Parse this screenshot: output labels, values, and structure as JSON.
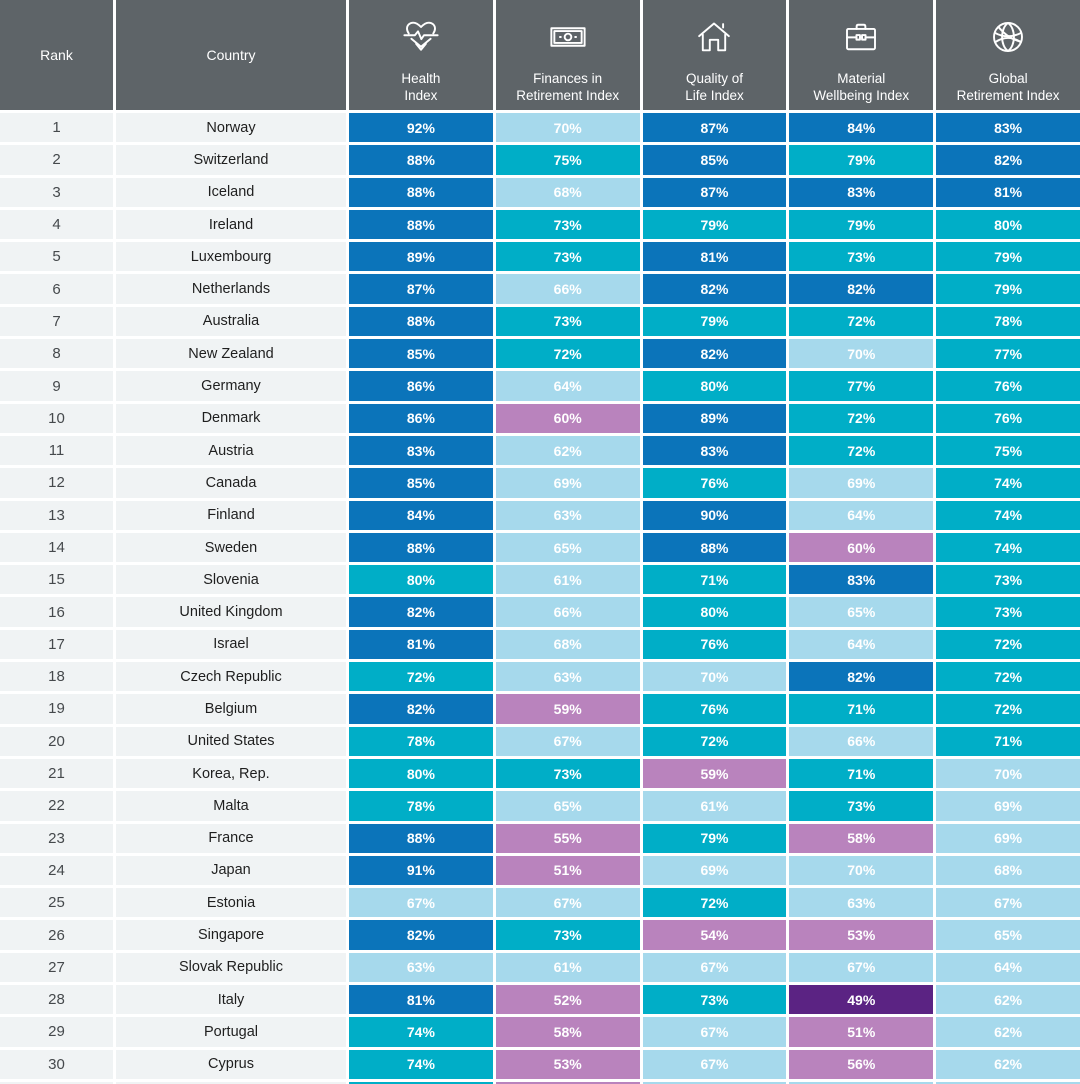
{
  "title": "Global Retirement Index country ranking table",
  "colors": {
    "header_bg": "#5e6468",
    "row_bg": "#f0f3f4",
    "dark_blue": "#0b74ba",
    "teal": "#00aec7",
    "light_blue": "#a6d9ec",
    "purple": "#b983bd",
    "dark_purple": "#5b2383",
    "value_text": "#ffffff",
    "rank_text": "#45494c",
    "country_text": "#1f1f1f"
  },
  "header": {
    "rank_label": "Rank",
    "country_label": "Country",
    "columns": [
      {
        "line1": "Health",
        "line2": "Index",
        "icon": "heartbeat-icon"
      },
      {
        "line1": "Finances in",
        "line2": "Retirement Index",
        "icon": "banknote-icon"
      },
      {
        "line1": "Quality of",
        "line2": "Life Index",
        "icon": "house-icon"
      },
      {
        "line1": "Material",
        "line2": "Wellbeing Index",
        "icon": "briefcase-icon"
      },
      {
        "line1": "Global",
        "line2": "Retirement Index",
        "icon": "globe-icon"
      }
    ]
  },
  "chart_data": {
    "type": "heatmap",
    "unit": "%",
    "columns": [
      "Health Index",
      "Finances in Retirement Index",
      "Quality of Life Index",
      "Material Wellbeing Index",
      "Global Retirement Index"
    ],
    "color_scale": [
      {
        "min": 81,
        "color_key": "dark_blue"
      },
      {
        "min": 71,
        "color_key": "teal"
      },
      {
        "min": 61,
        "color_key": "light_blue"
      },
      {
        "min": 51,
        "color_key": "purple"
      },
      {
        "min": 0,
        "color_key": "dark_purple"
      }
    ],
    "rows": [
      {
        "rank": 1,
        "country": "Norway",
        "values": [
          92,
          70,
          87,
          84,
          83
        ]
      },
      {
        "rank": 2,
        "country": "Switzerland",
        "values": [
          88,
          75,
          85,
          79,
          82
        ]
      },
      {
        "rank": 3,
        "country": "Iceland",
        "values": [
          88,
          68,
          87,
          83,
          81
        ]
      },
      {
        "rank": 4,
        "country": "Ireland",
        "values": [
          88,
          73,
          79,
          79,
          80
        ]
      },
      {
        "rank": 5,
        "country": "Luxembourg",
        "values": [
          89,
          73,
          81,
          73,
          79
        ]
      },
      {
        "rank": 6,
        "country": "Netherlands",
        "values": [
          87,
          66,
          82,
          82,
          79
        ]
      },
      {
        "rank": 7,
        "country": "Australia",
        "values": [
          88,
          73,
          79,
          72,
          78
        ]
      },
      {
        "rank": 8,
        "country": "New Zealand",
        "values": [
          85,
          72,
          82,
          70,
          77
        ]
      },
      {
        "rank": 9,
        "country": "Germany",
        "values": [
          86,
          64,
          80,
          77,
          76
        ]
      },
      {
        "rank": 10,
        "country": "Denmark",
        "values": [
          86,
          60,
          89,
          72,
          76
        ]
      },
      {
        "rank": 11,
        "country": "Austria",
        "values": [
          83,
          62,
          83,
          72,
          75
        ]
      },
      {
        "rank": 12,
        "country": "Canada",
        "values": [
          85,
          69,
          76,
          69,
          74
        ]
      },
      {
        "rank": 13,
        "country": "Finland",
        "values": [
          84,
          63,
          90,
          64,
          74
        ]
      },
      {
        "rank": 14,
        "country": "Sweden",
        "values": [
          88,
          65,
          88,
          60,
          74
        ]
      },
      {
        "rank": 15,
        "country": "Slovenia",
        "values": [
          80,
          61,
          71,
          83,
          73
        ]
      },
      {
        "rank": 16,
        "country": "United Kingdom",
        "values": [
          82,
          66,
          80,
          65,
          73
        ]
      },
      {
        "rank": 17,
        "country": "Israel",
        "values": [
          81,
          68,
          76,
          64,
          72
        ]
      },
      {
        "rank": 18,
        "country": "Czech Republic",
        "values": [
          72,
          63,
          70,
          82,
          72
        ]
      },
      {
        "rank": 19,
        "country": "Belgium",
        "values": [
          82,
          59,
          76,
          71,
          72
        ]
      },
      {
        "rank": 20,
        "country": "United States",
        "values": [
          78,
          67,
          72,
          66,
          71
        ]
      },
      {
        "rank": 21,
        "country": "Korea, Rep.",
        "values": [
          80,
          73,
          59,
          71,
          70
        ]
      },
      {
        "rank": 22,
        "country": "Malta",
        "values": [
          78,
          65,
          61,
          73,
          69
        ]
      },
      {
        "rank": 23,
        "country": "France",
        "values": [
          88,
          55,
          79,
          58,
          69
        ]
      },
      {
        "rank": 24,
        "country": "Japan",
        "values": [
          91,
          51,
          69,
          70,
          68
        ]
      },
      {
        "rank": 25,
        "country": "Estonia",
        "values": [
          67,
          67,
          72,
          63,
          67
        ]
      },
      {
        "rank": 26,
        "country": "Singapore",
        "values": [
          82,
          73,
          54,
          53,
          65
        ]
      },
      {
        "rank": 27,
        "country": "Slovak Republic",
        "values": [
          63,
          61,
          67,
          67,
          64
        ]
      },
      {
        "rank": 28,
        "country": "Italy",
        "values": [
          81,
          52,
          73,
          49,
          62
        ]
      },
      {
        "rank": 29,
        "country": "Portugal",
        "values": [
          74,
          58,
          67,
          51,
          62
        ]
      },
      {
        "rank": 30,
        "country": "Cyprus",
        "values": [
          74,
          53,
          67,
          56,
          62
        ]
      }
    ],
    "partial_row_colors": [
      "teal",
      "purple",
      "light_blue",
      "light_blue",
      "light_blue"
    ]
  }
}
